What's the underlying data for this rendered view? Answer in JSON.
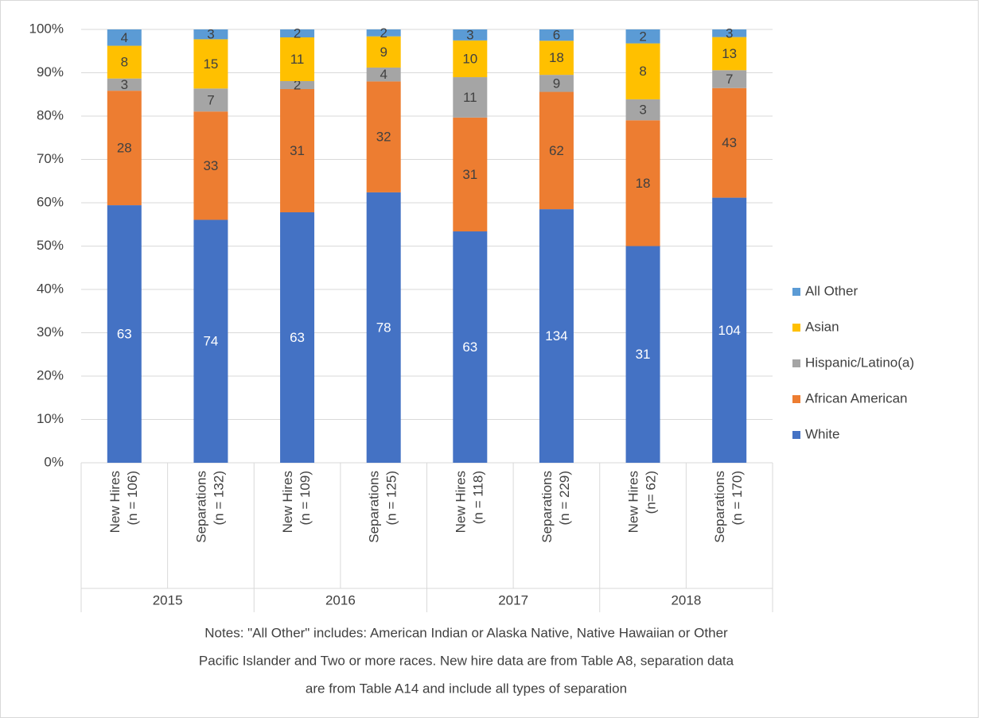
{
  "chart_data": {
    "type": "bar",
    "stacked": "percent",
    "groups": [
      {
        "name": "2015",
        "categories": [
          [
            "New Hires",
            "(n = 106)"
          ],
          [
            "Separations",
            "(n = 132)"
          ]
        ]
      },
      {
        "name": "2016",
        "categories": [
          [
            "New Hires",
            "(n = 109)"
          ],
          [
            "Separations",
            "(n = 125)"
          ]
        ]
      },
      {
        "name": "2017",
        "categories": [
          [
            "New Hires",
            "(n = 118)"
          ],
          [
            "Separations",
            "(n = 229)"
          ]
        ]
      },
      {
        "name": "2018",
        "categories": [
          [
            "New Hires",
            "(n= 62)"
          ],
          [
            "Separations",
            "(n = 170)"
          ]
        ]
      }
    ],
    "series": [
      {
        "name": "White",
        "color": "#4472c4",
        "label_color": "#ffffff",
        "values": [
          63,
          74,
          63,
          78,
          63,
          134,
          31,
          104
        ]
      },
      {
        "name": "African American",
        "color": "#ed7d31",
        "label_color": "#404040",
        "values": [
          28,
          33,
          31,
          32,
          31,
          62,
          18,
          43
        ]
      },
      {
        "name": "Hispanic/Latino(a)",
        "color": "#a5a5a5",
        "label_color": "#404040",
        "values": [
          3,
          7,
          2,
          4,
          11,
          9,
          3,
          7
        ]
      },
      {
        "name": "Asian",
        "color": "#ffc000",
        "label_color": "#404040",
        "values": [
          8,
          15,
          11,
          9,
          10,
          18,
          8,
          13
        ]
      },
      {
        "name": "All Other",
        "color": "#5b9bd5",
        "label_color": "#404040",
        "values": [
          4,
          3,
          2,
          2,
          3,
          6,
          2,
          3
        ]
      }
    ],
    "ylim": [
      0,
      100
    ],
    "yticks": [
      {
        "value": 0,
        "label": "0%"
      },
      {
        "value": 10,
        "label": "10%"
      },
      {
        "value": 20,
        "label": "20%"
      },
      {
        "value": 30,
        "label": "30%"
      },
      {
        "value": 40,
        "label": "40%"
      },
      {
        "value": 50,
        "label": "50%"
      },
      {
        "value": 60,
        "label": "60%"
      },
      {
        "value": 70,
        "label": "70%"
      },
      {
        "value": 80,
        "label": "80%"
      },
      {
        "value": 90,
        "label": "90%"
      },
      {
        "value": 100,
        "label": "100%"
      }
    ],
    "grid": true,
    "legend": "right",
    "notes": [
      "Notes: \"All Other\" includes: American Indian or Alaska Native, Native Hawaiian or Other",
      "Pacific Islander and Two or more races. New hire data are from Table A8, separation data",
      "are from Table A14 and include all types of separation"
    ]
  }
}
